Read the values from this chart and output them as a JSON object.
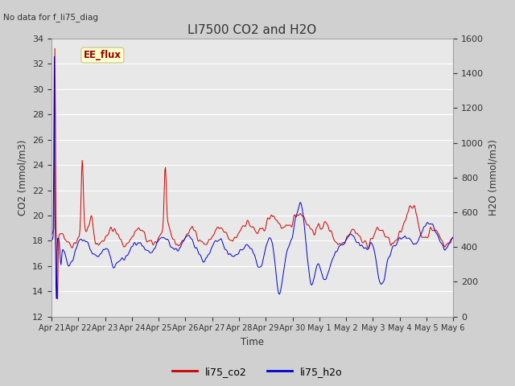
{
  "title": "LI7500 CO2 and H2O",
  "top_left_text": "No data for f_li75_diag",
  "xlabel": "Time",
  "ylabel_left": "CO2 (mmol/m3)",
  "ylabel_right": "H2O (mmol/m3)",
  "ylim_left": [
    12,
    34
  ],
  "ylim_right": [
    0,
    1600
  ],
  "yticks_left": [
    12,
    14,
    16,
    18,
    20,
    22,
    24,
    26,
    28,
    30,
    32,
    34
  ],
  "yticks_right": [
    0,
    200,
    400,
    600,
    800,
    1000,
    1200,
    1400,
    1600
  ],
  "xtick_labels": [
    "Apr 21",
    "Apr 22",
    "Apr 23",
    "Apr 24",
    "Apr 25",
    "Apr 26",
    "Apr 27",
    "Apr 28",
    "Apr 29",
    "Apr 30",
    "May 1",
    "May 2",
    "May 3",
    "May 4",
    "May 5",
    "May 6"
  ],
  "legend_labels": [
    "li75_co2",
    "li75_h2o"
  ],
  "line_colors": [
    "#cc0000",
    "#0000cc"
  ],
  "annotation_text": "EE_flux",
  "annotation_color": "#990000",
  "annotation_bg": "#ffffcc",
  "annotation_border": "#cccc99",
  "fig_bg_color": "#d0d0d0",
  "plot_bg_color": "#e8e8e8",
  "grid_color": "#ffffff",
  "font_color": "#333333",
  "seed": 42
}
